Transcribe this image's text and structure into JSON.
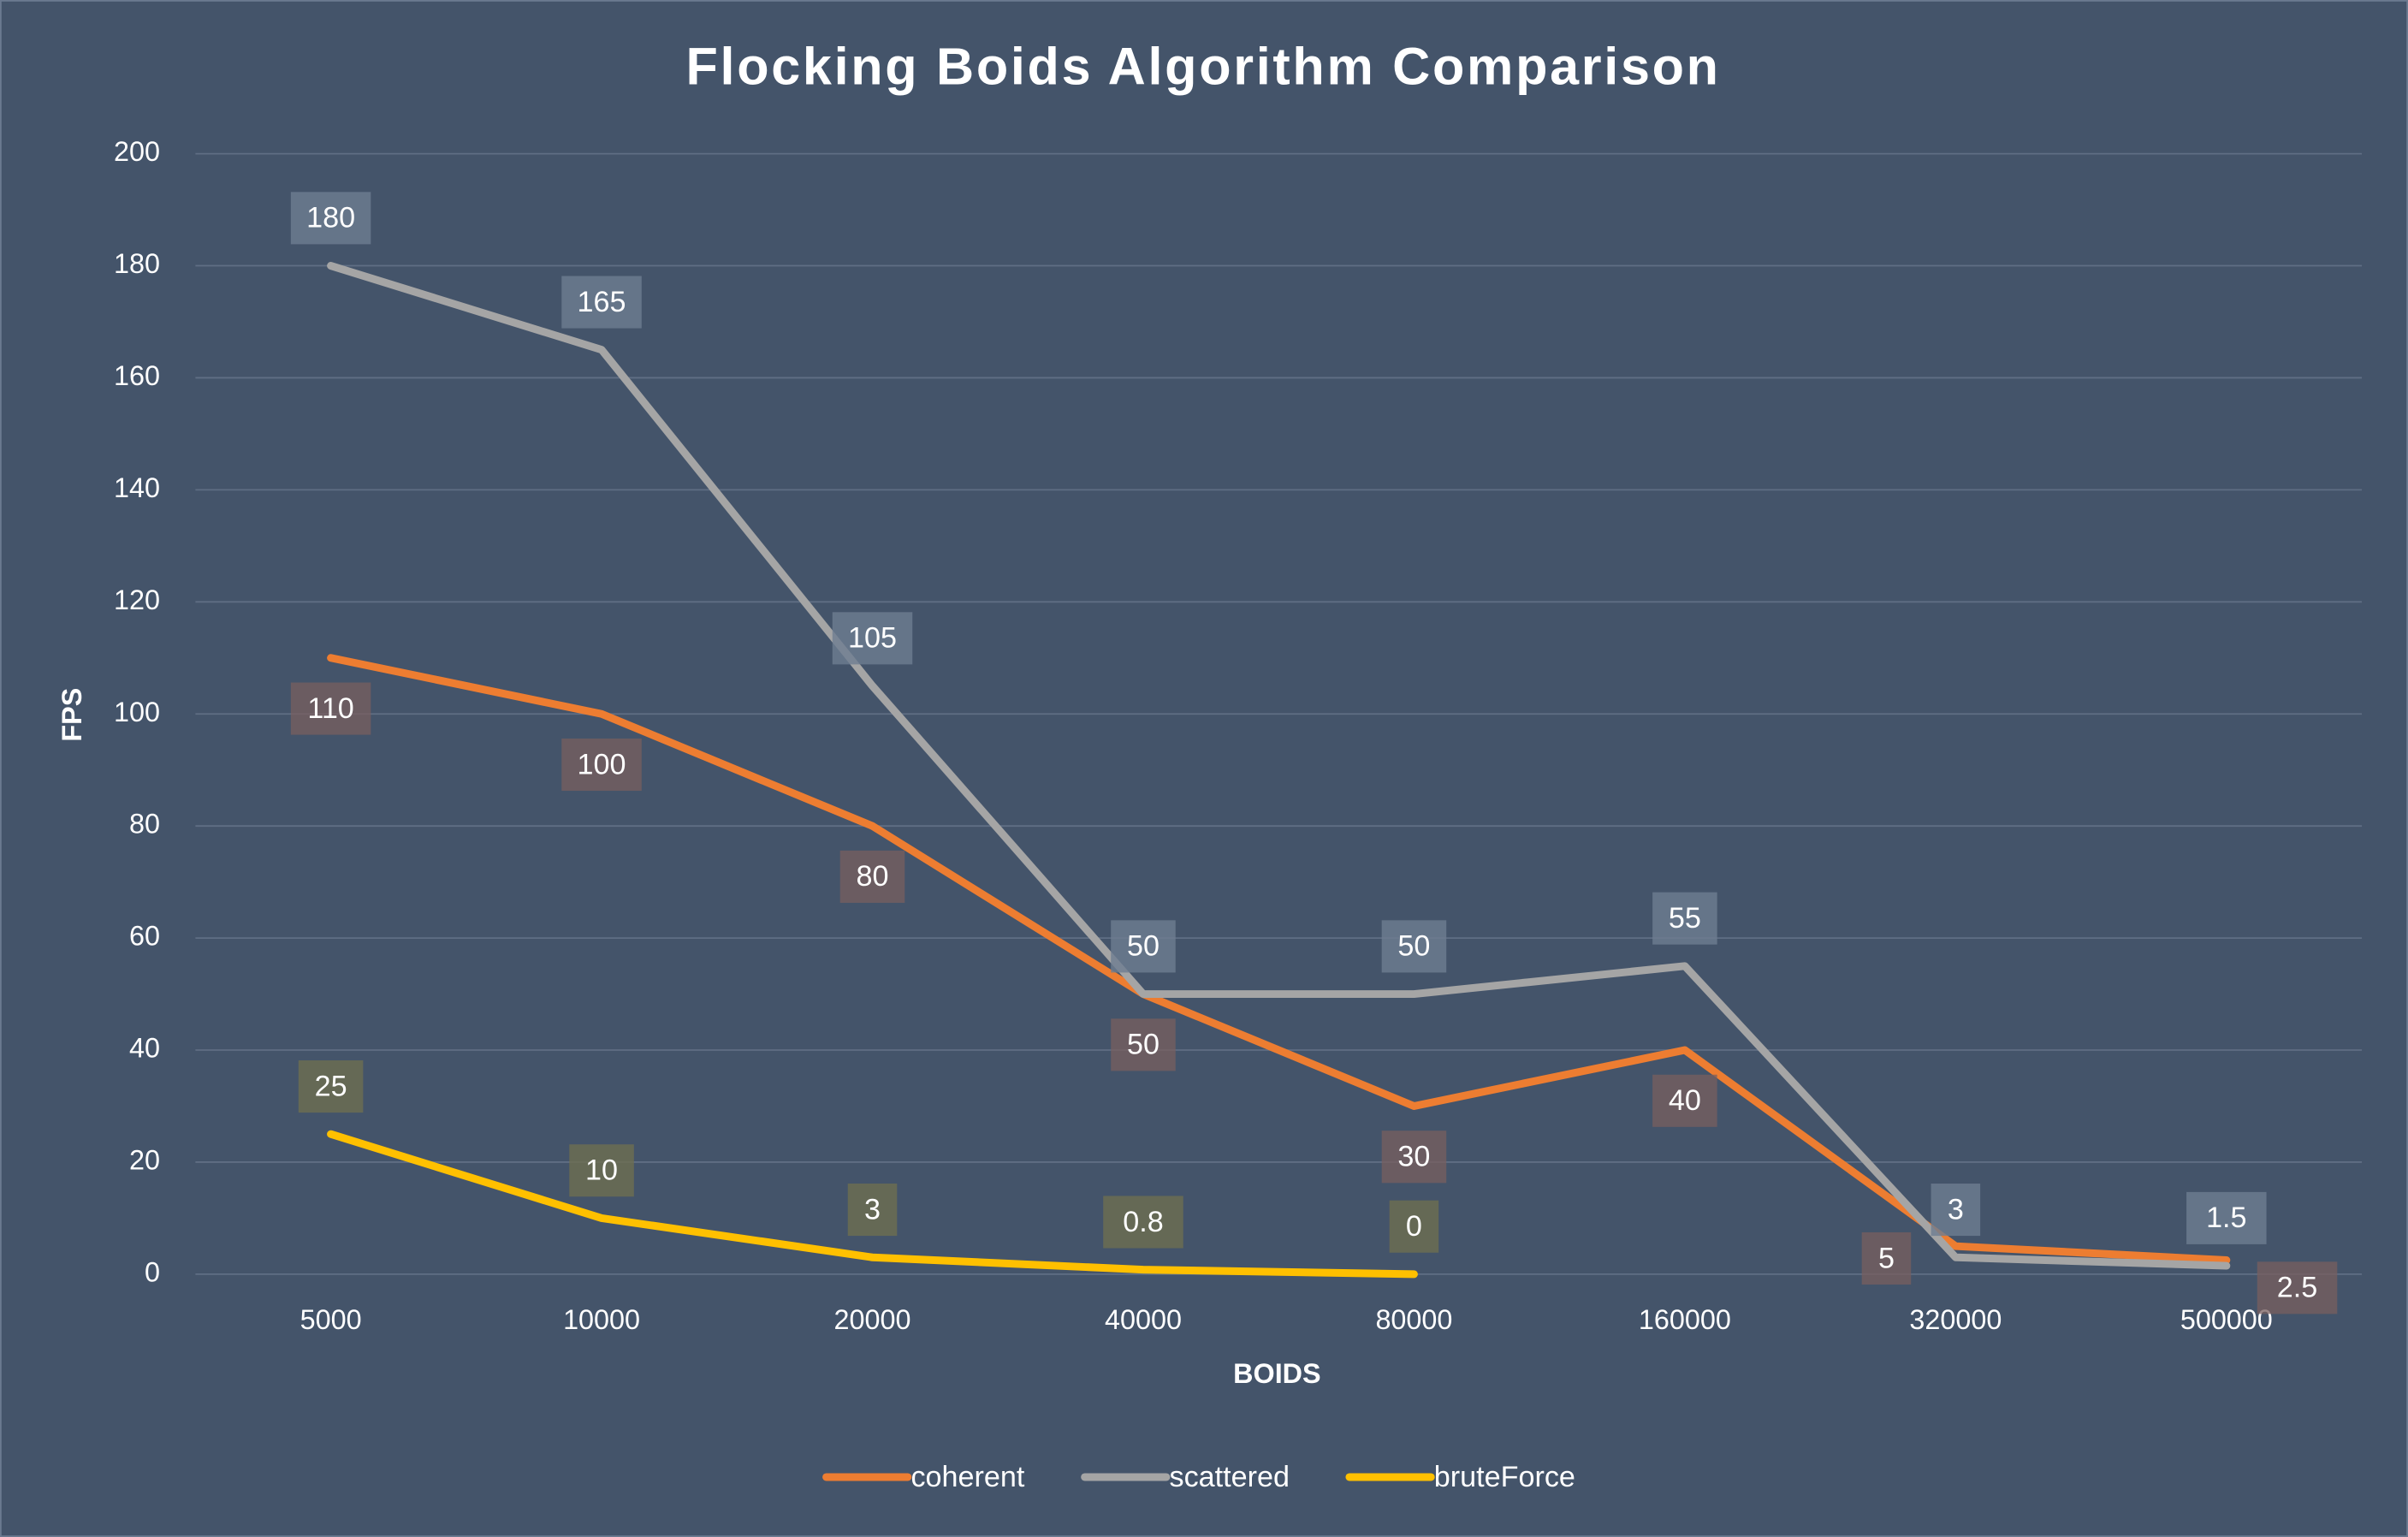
{
  "chart_data": {
    "type": "line",
    "title": "Flocking Boids Algorithm Comparison",
    "x_label": "BOIDS",
    "y_label": "FPS",
    "categories": [
      "5000",
      "10000",
      "20000",
      "40000",
      "80000",
      "160000",
      "320000",
      "500000"
    ],
    "series": [
      {
        "name": "coherent",
        "color": "#ed7d31",
        "values": [
          110,
          100,
          80,
          50,
          30,
          40,
          5,
          2.5
        ]
      },
      {
        "name": "scattered",
        "color": "#a5a5a5",
        "values": [
          180,
          165,
          105,
          50,
          50,
          55,
          3,
          1.5
        ]
      },
      {
        "name": "bruteForce",
        "color": "#ffc000",
        "values": [
          25,
          10,
          3,
          0.8,
          0,
          null,
          null,
          null
        ]
      }
    ],
    "ylim": [
      0,
      200
    ],
    "yticks": [
      0,
      20,
      40,
      60,
      80,
      100,
      120,
      140,
      160,
      180,
      200
    ],
    "grid": true,
    "legend": "bottom"
  }
}
